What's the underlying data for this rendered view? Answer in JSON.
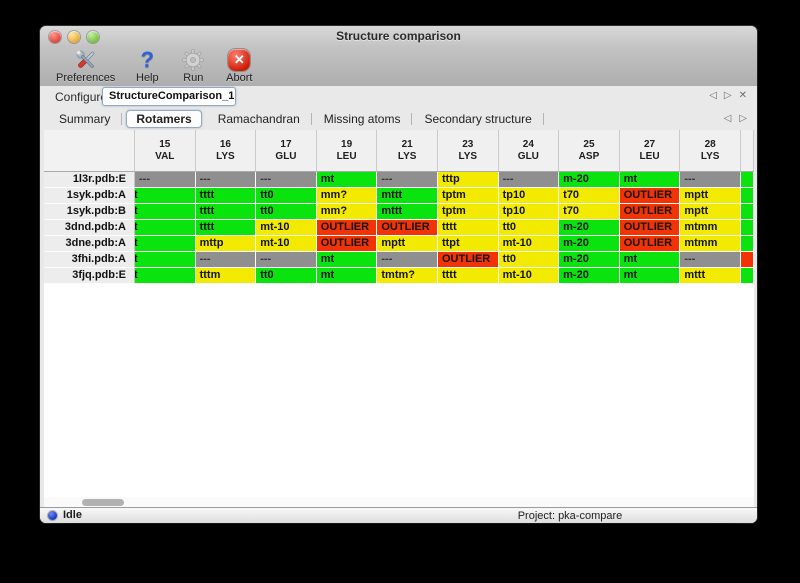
{
  "window": {
    "title": "Structure comparison"
  },
  "toolbar": {
    "buttons": [
      {
        "label": "Preferences",
        "icon": "tools-icon"
      },
      {
        "label": "Help",
        "icon": "question-mark-icon",
        "glyph": "?"
      },
      {
        "label": "Run",
        "icon": "gear-icon"
      },
      {
        "label": "Abort",
        "icon": "stop-icon",
        "glyph": "✕"
      }
    ]
  },
  "configure": {
    "label": "Configure",
    "value": "StructureComparison_1",
    "nav_prev": "◁",
    "nav_next": "▷",
    "nav_close": "✕"
  },
  "tabs": {
    "items": [
      {
        "label": "Summary",
        "selected": false
      },
      {
        "label": "Rotamers",
        "selected": true
      },
      {
        "label": "Ramachandran",
        "selected": false
      },
      {
        "label": "Missing atoms",
        "selected": false
      },
      {
        "label": "Secondary structure",
        "selected": false
      }
    ],
    "nav_prev": "◁",
    "nav_next": "▷"
  },
  "table": {
    "columns": [
      {
        "num": "15",
        "res": "VAL"
      },
      {
        "num": "16",
        "res": "LYS"
      },
      {
        "num": "17",
        "res": "GLU"
      },
      {
        "num": "19",
        "res": "LEU"
      },
      {
        "num": "21",
        "res": "LYS"
      },
      {
        "num": "23",
        "res": "LYS"
      },
      {
        "num": "24",
        "res": "GLU"
      },
      {
        "num": "25",
        "res": "ASP"
      },
      {
        "num": "27",
        "res": "LEU"
      },
      {
        "num": "28",
        "res": "LYS"
      }
    ],
    "status_colors": {
      "green": "#0ae30e",
      "yellow": "#f2ea00",
      "red": "#f13305",
      "gray": "#8f8f8f"
    },
    "rows": [
      {
        "label": "1l3r.pdb:E",
        "partial": "green",
        "cells": [
          {
            "t": "---",
            "c": "gray"
          },
          {
            "t": "---",
            "c": "gray"
          },
          {
            "t": "---",
            "c": "gray"
          },
          {
            "t": "mt",
            "c": "green"
          },
          {
            "t": "---",
            "c": "gray"
          },
          {
            "t": "tttp",
            "c": "yellow"
          },
          {
            "t": "---",
            "c": "gray"
          },
          {
            "t": "m-20",
            "c": "green"
          },
          {
            "t": "mt",
            "c": "green"
          },
          {
            "t": "---",
            "c": "gray"
          }
        ]
      },
      {
        "label": "1syk.pdb:A",
        "partial": "green",
        "cells": [
          {
            "t": "t",
            "c": "green",
            "clipped": true
          },
          {
            "t": "tttt",
            "c": "green"
          },
          {
            "t": "tt0",
            "c": "green"
          },
          {
            "t": "mm?",
            "c": "yellow"
          },
          {
            "t": "mttt",
            "c": "green"
          },
          {
            "t": "tptm",
            "c": "yellow"
          },
          {
            "t": "tp10",
            "c": "yellow"
          },
          {
            "t": "t70",
            "c": "yellow"
          },
          {
            "t": "OUTLIER",
            "c": "red"
          },
          {
            "t": "mptt",
            "c": "yellow"
          }
        ]
      },
      {
        "label": "1syk.pdb:B",
        "partial": "green",
        "cells": [
          {
            "t": "t",
            "c": "green",
            "clipped": true
          },
          {
            "t": "tttt",
            "c": "green"
          },
          {
            "t": "tt0",
            "c": "green"
          },
          {
            "t": "mm?",
            "c": "yellow"
          },
          {
            "t": "mttt",
            "c": "green"
          },
          {
            "t": "tptm",
            "c": "yellow"
          },
          {
            "t": "tp10",
            "c": "yellow"
          },
          {
            "t": "t70",
            "c": "yellow"
          },
          {
            "t": "OUTLIER",
            "c": "red"
          },
          {
            "t": "mptt",
            "c": "yellow"
          }
        ]
      },
      {
        "label": "3dnd.pdb:A",
        "partial": "green",
        "cells": [
          {
            "t": "t",
            "c": "green",
            "clipped": true
          },
          {
            "t": "tttt",
            "c": "green"
          },
          {
            "t": "mt-10",
            "c": "yellow"
          },
          {
            "t": "OUTLIER",
            "c": "red"
          },
          {
            "t": "OUTLIER",
            "c": "red"
          },
          {
            "t": "tttt",
            "c": "yellow"
          },
          {
            "t": "tt0",
            "c": "yellow"
          },
          {
            "t": "m-20",
            "c": "green"
          },
          {
            "t": "OUTLIER",
            "c": "red"
          },
          {
            "t": "mtmm",
            "c": "yellow"
          }
        ]
      },
      {
        "label": "3dne.pdb:A",
        "partial": "green",
        "cells": [
          {
            "t": "t",
            "c": "green",
            "clipped": true
          },
          {
            "t": "mttp",
            "c": "yellow"
          },
          {
            "t": "mt-10",
            "c": "yellow"
          },
          {
            "t": "OUTLIER",
            "c": "red"
          },
          {
            "t": "mptt",
            "c": "yellow"
          },
          {
            "t": "ttpt",
            "c": "yellow"
          },
          {
            "t": "mt-10",
            "c": "yellow"
          },
          {
            "t": "m-20",
            "c": "green"
          },
          {
            "t": "OUTLIER",
            "c": "red"
          },
          {
            "t": "mtmm",
            "c": "yellow"
          }
        ]
      },
      {
        "label": "3fhi.pdb:A",
        "partial": "red",
        "cells": [
          {
            "t": "t",
            "c": "green",
            "clipped": true
          },
          {
            "t": "---",
            "c": "gray"
          },
          {
            "t": "---",
            "c": "gray"
          },
          {
            "t": "mt",
            "c": "green"
          },
          {
            "t": "---",
            "c": "gray"
          },
          {
            "t": "OUTLIER",
            "c": "red"
          },
          {
            "t": "tt0",
            "c": "yellow"
          },
          {
            "t": "m-20",
            "c": "green"
          },
          {
            "t": "mt",
            "c": "green"
          },
          {
            "t": "---",
            "c": "gray"
          }
        ]
      },
      {
        "label": "3fjq.pdb:E",
        "partial": "green",
        "cells": [
          {
            "t": "t",
            "c": "green",
            "clipped": true
          },
          {
            "t": "tttm",
            "c": "yellow"
          },
          {
            "t": "tt0",
            "c": "green"
          },
          {
            "t": "mt",
            "c": "green"
          },
          {
            "t": "tmtm?",
            "c": "yellow"
          },
          {
            "t": "tttt",
            "c": "yellow"
          },
          {
            "t": "mt-10",
            "c": "yellow"
          },
          {
            "t": "m-20",
            "c": "green"
          },
          {
            "t": "mt",
            "c": "green"
          },
          {
            "t": "mttt",
            "c": "yellow"
          }
        ]
      }
    ]
  },
  "statusbar": {
    "status": "Idle",
    "project": "Project: pka-compare"
  }
}
